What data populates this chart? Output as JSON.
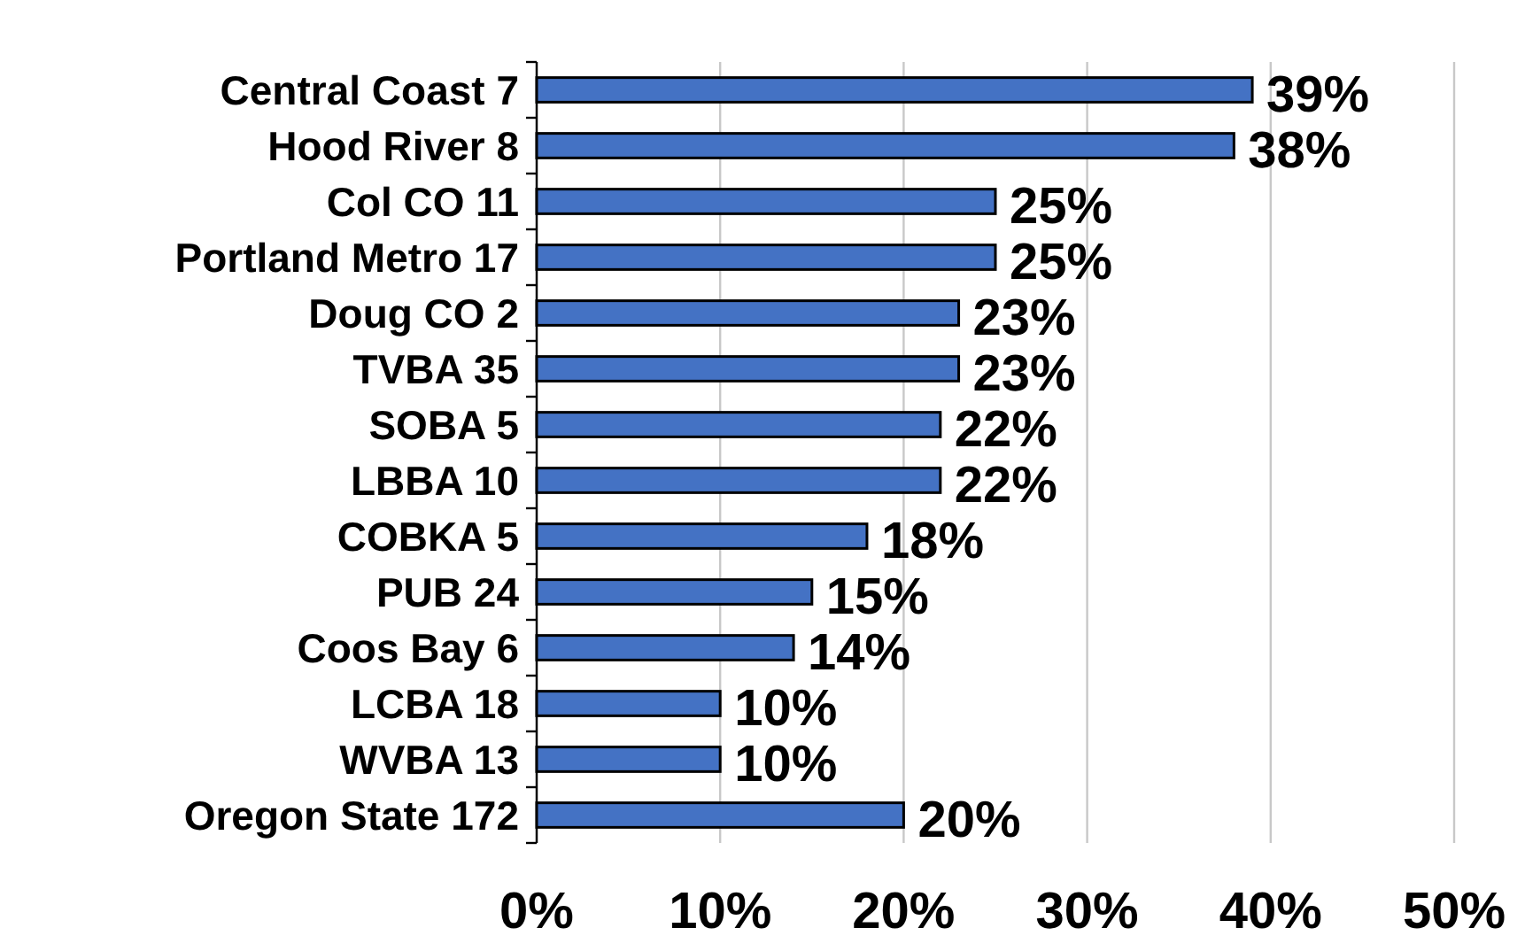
{
  "chart_data": {
    "type": "bar",
    "orientation": "horizontal",
    "categories": [
      "Central Coast 7",
      "Hood River 8",
      "Col CO 11",
      "Portland Metro 17",
      "Doug CO 2",
      "TVBA 35",
      "SOBA 5",
      "LBBA 10",
      "COBKA 5",
      "PUB 24",
      "Coos Bay 6",
      "LCBA 18",
      "WVBA 13",
      "Oregon State 172"
    ],
    "values": [
      39,
      38,
      25,
      25,
      23,
      23,
      22,
      22,
      18,
      15,
      14,
      10,
      10,
      20
    ],
    "value_labels": [
      "39%",
      "38%",
      "25%",
      "25%",
      "23%",
      "23%",
      "22%",
      "22%",
      "18%",
      "15%",
      "14%",
      "10%",
      "10%",
      "20%"
    ],
    "color": "#4472c4",
    "xlim": [
      0,
      50
    ],
    "xticks": [
      {
        "value": 0,
        "label": "0%"
      },
      {
        "value": 10,
        "label": "10%"
      },
      {
        "value": 20,
        "label": "20%"
      },
      {
        "value": 30,
        "label": "30%"
      },
      {
        "value": 40,
        "label": "40%"
      },
      {
        "value": 50,
        "label": "50%"
      }
    ],
    "grid": "x"
  }
}
